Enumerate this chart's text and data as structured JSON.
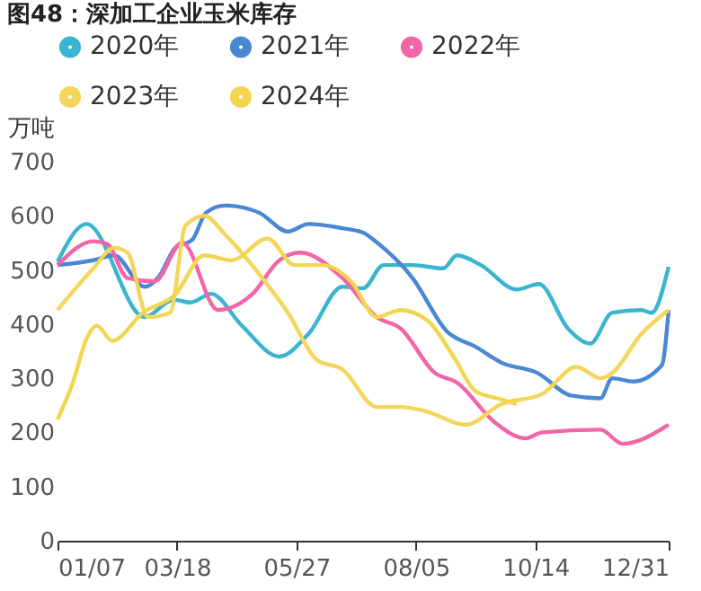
{
  "chart_data": {
    "type": "line",
    "title": "图48：深加工企业玉米库存",
    "ylabel": "万吨",
    "legend": "top left",
    "grid": false,
    "xlim": [
      "--01-07",
      "--12-31"
    ],
    "xticks": [
      {
        "value": "--01-07",
        "label": "01/07"
      },
      {
        "value": "--03-18",
        "label": "03/18"
      },
      {
        "value": "--05-27",
        "label": "05/27"
      },
      {
        "value": "--08-05",
        "label": "08/05"
      },
      {
        "value": "--10-14",
        "label": "10/14"
      },
      {
        "value": "--12-31",
        "label": "12/31"
      }
    ],
    "ylim": [
      0,
      700
    ],
    "yticks": [
      0,
      100,
      200,
      300,
      400,
      500,
      600,
      700
    ],
    "series": [
      {
        "name": "2020年",
        "color": "#3bb5cf",
        "x": [
          "--01-07",
          "--01-24",
          "--02-27",
          "--03-16",
          "--03-26",
          "--04-07",
          "--04-25",
          "--05-17",
          "--06-03",
          "--06-23",
          "--07-05",
          "--07-17",
          "--08-03",
          "--08-21",
          "--08-29",
          "--09-12",
          "--10-03",
          "--10-16",
          "--11-02",
          "--11-15",
          "--11-28",
          "--12-15",
          "--12-21",
          "--12-31"
        ],
        "values": [
          515,
          585,
          413,
          445,
          440,
          456,
          397,
          340,
          382,
          469,
          466,
          509,
          509,
          503,
          527,
          509,
          464,
          474,
          392,
          364,
          421,
          426,
          421,
          506
        ]
      },
      {
        "name": "2021年",
        "color": "#4a88d4",
        "x": [
          "--01-07",
          "--01-28",
          "--02-09",
          "--02-27",
          "--03-07",
          "--03-17",
          "--03-27",
          "--04-04",
          "--04-15",
          "--05-05",
          "--05-22",
          "--06-03",
          "--06-23",
          "--07-05",
          "--07-13",
          "--08-03",
          "--08-23",
          "--09-09",
          "--09-24",
          "--10-15",
          "--11-04",
          "--11-21",
          "--11-28",
          "--12-10",
          "--12-27",
          "--12-31"
        ],
        "values": [
          509,
          518,
          527,
          469,
          486,
          541,
          556,
          606,
          619,
          606,
          571,
          585,
          577,
          569,
          551,
          485,
          387,
          358,
          329,
          310,
          268,
          263,
          300,
          294,
          324,
          426
        ]
      },
      {
        "name": "2022年",
        "color": "#f464a8",
        "x": [
          "--01-07",
          "--01-28",
          "--02-05",
          "--02-17",
          "--03-05",
          "--03-21",
          "--04-11",
          "--05-01",
          "--05-17",
          "--05-29",
          "--06-23",
          "--07-13",
          "--07-27",
          "--08-16",
          "--08-29",
          "--09-20",
          "--10-08",
          "--10-18",
          "--11-21",
          "--12-04",
          "--12-31"
        ],
        "values": [
          509,
          553,
          548,
          485,
          479,
          551,
          426,
          455,
          518,
          532,
          485,
          413,
          392,
          310,
          292,
          219,
          189,
          200,
          205,
          179,
          214
        ]
      },
      {
        "name": "2023年",
        "color": "#f5d55a",
        "x": [
          "--01-07",
          "--01-28",
          "--02-09",
          "--02-17",
          "--03-01",
          "--03-14",
          "--03-23",
          "--04-03",
          "--04-15",
          "--05-05",
          "--05-22",
          "--06-08",
          "--06-23",
          "--07-13",
          "--07-27",
          "--08-12",
          "--09-03",
          "--09-24",
          "--10-18",
          "--11-07",
          "--11-21",
          "--11-28",
          "--12-15",
          "--12-31"
        ],
        "values": [
          426,
          503,
          541,
          532,
          413,
          421,
          582,
          600,
          566,
          493,
          421,
          334,
          316,
          247,
          247,
          238,
          214,
          252,
          271,
          321,
          300,
          310,
          382,
          426
        ]
      },
      {
        "name": "2024年",
        "color": "#f2d650",
        "x": [
          "--01-07",
          "--01-16",
          "--01-24",
          "--01-30",
          "--02-08",
          "--02-26",
          "--03-17",
          "--04-03",
          "--04-19",
          "--05-10",
          "--05-26",
          "--06-11",
          "--06-28",
          "--07-13",
          "--07-27",
          "--08-12",
          "--08-27",
          "--09-09",
          "--09-24",
          "--10-03"
        ],
        "values": [
          224,
          292,
          373,
          397,
          369,
          421,
          455,
          527,
          518,
          558,
          509,
          509,
          479,
          413,
          426,
          406,
          340,
          276,
          261,
          252
        ]
      }
    ]
  }
}
